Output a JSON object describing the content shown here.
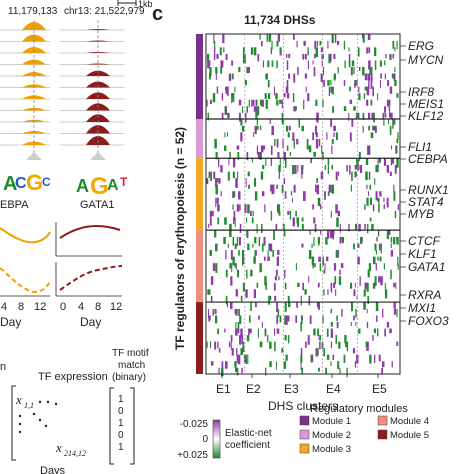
{
  "panel_c": {
    "letter": "c",
    "title": "11,734 DHSs",
    "y_axis_label": "TF regulators of erythropoiesis (n = 52)",
    "x_axis_label": "DHS clusters",
    "clusters": [
      "E1",
      "E2",
      "E3",
      "E4",
      "E5"
    ],
    "gene_labels": [
      "ERG",
      "MYCN",
      "IRF8",
      "MEIS1",
      "KLF12",
      "FLI1",
      "CEBPA",
      "RUNX1",
      "STAT4",
      "MYB",
      "CTCF",
      "KLF1",
      "GATA1",
      "RXRA",
      "MXI1",
      "FOXO3"
    ],
    "legend": {
      "colorbar_ticks": [
        "-0.025",
        "0",
        "+0.025"
      ],
      "colorbar_label_line1": "Elastic-net",
      "colorbar_label_line2": "coefficient",
      "modules_title": "Regulatory modules",
      "modules": [
        {
          "label": "Module 1",
          "color": "#7b2f8f"
        },
        {
          "label": "Module 2",
          "color": "#d99ad6"
        },
        {
          "label": "Module 3",
          "color": "#f5a623"
        },
        {
          "label": "Module 4",
          "color": "#f08f7f"
        },
        {
          "label": "Module 5",
          "color": "#8e1d1d"
        }
      ],
      "neg_color": "#8e3aa8",
      "pos_color": "#1f8a2e"
    },
    "module_bar_order": [
      "#7b2f8f",
      "#d99ad6",
      "#f5a623",
      "#f08f7f",
      "#8e1d1d"
    ]
  },
  "panel_left": {
    "coord_left": "11,179,133",
    "coord_right": "chr13: 21,522,979",
    "scale_label": "1kb",
    "motif_left": "EBPA",
    "motif_right": "GATA1",
    "day_ticks_left": [
      "4",
      "8",
      "12"
    ],
    "day_ticks_right": [
      "0",
      "4",
      "8",
      "12"
    ],
    "day_label": "Day",
    "expr_title": "TF expression",
    "expr_first": "x",
    "expr_first_sub": "1,1",
    "expr_last": "x",
    "expr_last_sub": "214,12",
    "days_label": "Days",
    "motif_match_line1": "TF motif",
    "motif_match_line2": "match",
    "motif_match_line3": "(binary)",
    "binary_values": [
      "1",
      "0",
      "1",
      "0",
      "1"
    ],
    "panel_letter_fragment": "n",
    "orange": "#f0a000",
    "darkred": "#8b1c1c"
  }
}
